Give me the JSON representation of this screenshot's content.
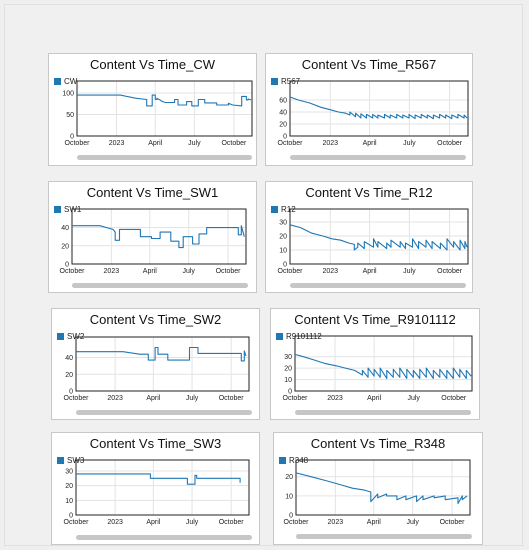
{
  "series_color": "#1f77b4",
  "chart_data": [
    {
      "type": "line",
      "title": "Content Vs Time_CW",
      "series": [
        {
          "name": "CW",
          "x": [
            "2022-10-01",
            "2022-12-06",
            "2023-01-10",
            "2023-02-14",
            "2023-03-12",
            "2023-03-12",
            "2023-03-25",
            "2023-03-25",
            "2023-04-01",
            "2023-04-01",
            "2023-04-05",
            "2023-04-05",
            "2023-04-18",
            "2023-04-25",
            "2023-05-16",
            "2023-05-16",
            "2023-05-24",
            "2023-05-24",
            "2023-06-13",
            "2023-06-13",
            "2023-06-25",
            "2023-06-25",
            "2023-07-10",
            "2023-07-10",
            "2023-07-25",
            "2023-07-25",
            "2023-08-22",
            "2023-08-22",
            "2023-09-18",
            "2023-09-18",
            "2023-09-28",
            "2023-10-19",
            "2023-10-19",
            "2023-10-30",
            "2023-10-30",
            "2023-11-03",
            "2023-11-03",
            "2023-11-10"
          ],
          "y": [
            95,
            95,
            95,
            88,
            85,
            70,
            70,
            95,
            95,
            85,
            85,
            88,
            80,
            78,
            78,
            85,
            85,
            72,
            72,
            80,
            80,
            70,
            70,
            85,
            85,
            77,
            77,
            72,
            72,
            76,
            72,
            70,
            92,
            92,
            84,
            84,
            86,
            84
          ]
        }
      ],
      "xlabel": "",
      "ylabel": "",
      "ylim": [
        0,
        100
      ],
      "xticks": [
        "October",
        "2023",
        "April",
        "July",
        "October"
      ],
      "yticks": [
        0,
        50,
        100
      ]
    },
    {
      "type": "line",
      "title": "Content Vs Time_R567",
      "series": [
        {
          "name": "R567",
          "x": [
            "2022-10-01",
            "2022-10-20",
            "2022-11-15",
            "2022-12-10",
            "2023-01-05",
            "2023-01-20",
            "2023-02-05",
            "2023-02-15",
            "2023-02-15",
            "2023-02-28",
            "2023-02-28",
            "2023-03-12",
            "2023-03-12",
            "2023-03-25",
            "2023-03-25",
            "2023-04-08",
            "2023-04-08",
            "2023-04-20",
            "2023-04-20",
            "2023-05-05",
            "2023-05-05",
            "2023-05-18",
            "2023-05-18",
            "2023-06-02",
            "2023-06-02",
            "2023-06-16",
            "2023-06-16",
            "2023-06-30",
            "2023-06-30",
            "2023-07-14",
            "2023-07-14",
            "2023-07-28",
            "2023-07-28",
            "2023-08-11",
            "2023-08-11",
            "2023-08-25",
            "2023-08-25",
            "2023-09-08",
            "2023-09-08",
            "2023-09-22",
            "2023-09-22",
            "2023-10-06",
            "2023-10-06",
            "2023-10-20",
            "2023-10-20",
            "2023-11-03",
            "2023-11-03",
            "2023-11-10"
          ],
          "y": [
            65,
            60,
            55,
            48,
            43,
            40,
            38,
            35,
            40,
            32,
            38,
            30,
            37,
            30,
            36,
            30,
            36,
            30,
            35,
            30,
            36,
            30,
            35,
            30,
            36,
            30,
            35,
            30,
            36,
            29,
            35,
            30,
            36,
            30,
            35,
            29,
            35,
            30,
            36,
            30,
            35,
            29,
            35,
            30,
            36,
            30,
            35,
            30
          ]
        }
      ],
      "xlabel": "",
      "ylabel": "",
      "ylim": [
        0,
        70
      ],
      "xticks": [
        "October",
        "2023",
        "April",
        "July",
        "October"
      ],
      "yticks": [
        0,
        20,
        40,
        60
      ]
    },
    {
      "type": "line",
      "title": "Content Vs Time_SW1",
      "series": [
        {
          "name": "SW1",
          "x": [
            "2022-10-01",
            "2022-12-05",
            "2023-01-05",
            "2023-01-10",
            "2023-01-10",
            "2023-01-20",
            "2023-01-20",
            "2023-03-10",
            "2023-03-10",
            "2023-04-05",
            "2023-04-05",
            "2023-04-25",
            "2023-04-25",
            "2023-05-20",
            "2023-05-20",
            "2023-06-08",
            "2023-06-08",
            "2023-06-18",
            "2023-06-18",
            "2023-07-10",
            "2023-07-10",
            "2023-07-25",
            "2023-07-25",
            "2023-08-12",
            "2023-08-12",
            "2023-10-25",
            "2023-10-25",
            "2023-11-01",
            "2023-11-01",
            "2023-11-08"
          ],
          "y": [
            42,
            42,
            38,
            35,
            26,
            26,
            38,
            38,
            30,
            30,
            28,
            28,
            35,
            35,
            25,
            25,
            18,
            18,
            30,
            30,
            22,
            22,
            33,
            33,
            40,
            40,
            32,
            32,
            42,
            30
          ]
        }
      ],
      "xlabel": "",
      "ylabel": "",
      "ylim": [
        0,
        45
      ],
      "xticks": [
        "October",
        "2023",
        "April",
        "July",
        "October"
      ],
      "yticks": [
        0,
        20,
        40
      ]
    },
    {
      "type": "line",
      "title": "Content Vs Time_R12",
      "series": [
        {
          "name": "R12",
          "x": [
            "2022-10-01",
            "2022-10-25",
            "2022-11-20",
            "2022-12-15",
            "2023-01-05",
            "2023-01-25",
            "2023-02-12",
            "2023-02-25",
            "2023-02-25",
            "2023-03-05",
            "2023-03-05",
            "2023-03-20",
            "2023-03-20",
            "2023-04-10",
            "2023-04-10",
            "2023-04-20",
            "2023-04-20",
            "2023-05-10",
            "2023-05-10",
            "2023-05-20",
            "2023-05-20",
            "2023-06-10",
            "2023-06-10",
            "2023-06-22",
            "2023-06-22",
            "2023-07-08",
            "2023-07-08",
            "2023-07-22",
            "2023-07-22",
            "2023-08-08",
            "2023-08-08",
            "2023-08-22",
            "2023-08-22",
            "2023-09-10",
            "2023-09-10",
            "2023-09-25",
            "2023-09-25",
            "2023-10-10",
            "2023-10-10",
            "2023-10-25",
            "2023-10-25",
            "2023-11-05",
            "2023-11-05",
            "2023-11-10"
          ],
          "y": [
            28,
            26,
            22,
            20,
            18,
            17,
            15,
            14,
            10,
            12,
            15,
            11,
            16,
            12,
            18,
            12,
            16,
            11,
            15,
            12,
            17,
            12,
            16,
            11,
            15,
            12,
            18,
            11,
            16,
            12,
            17,
            11,
            16,
            11,
            15,
            10,
            18,
            12,
            16,
            10,
            17,
            11,
            16,
            12
          ]
        }
      ],
      "xlabel": "",
      "ylabel": "",
      "ylim": [
        0,
        30
      ],
      "xticks": [
        "October",
        "2023",
        "April",
        "July",
        "October"
      ],
      "yticks": [
        0,
        10,
        20,
        30
      ]
    },
    {
      "type": "line",
      "title": "Content Vs Time_SW2",
      "series": [
        {
          "name": "SW2",
          "x": [
            "2022-10-01",
            "2023-01-20",
            "2023-02-28",
            "2023-03-20",
            "2023-03-20",
            "2023-04-05",
            "2023-04-05",
            "2023-04-12",
            "2023-04-12",
            "2023-05-05",
            "2023-05-05",
            "2023-06-25",
            "2023-06-25",
            "2023-07-15",
            "2023-07-15",
            "2023-08-28",
            "2023-08-28",
            "2023-10-25",
            "2023-10-25",
            "2023-11-01",
            "2023-11-01",
            "2023-11-05"
          ],
          "y": [
            47,
            47,
            44,
            44,
            37,
            37,
            52,
            52,
            44,
            44,
            37,
            37,
            52,
            52,
            45,
            45,
            45,
            45,
            36,
            36,
            48,
            42
          ]
        }
      ],
      "xlabel": "",
      "ylabel": "",
      "ylim": [
        0,
        55
      ],
      "xticks": [
        "October",
        "2023",
        "April",
        "July",
        "October"
      ],
      "yticks": [
        0,
        20,
        40
      ]
    },
    {
      "type": "line",
      "title": "Content Vs Time_R9101112",
      "series": [
        {
          "name": "R9101112",
          "x": [
            "2022-10-01",
            "2022-10-20",
            "2022-11-15",
            "2022-12-10",
            "2023-01-05",
            "2023-01-25",
            "2023-02-15",
            "2023-03-05",
            "2023-03-05",
            "2023-03-18",
            "2023-03-18",
            "2023-04-01",
            "2023-04-01",
            "2023-04-15",
            "2023-04-15",
            "2023-04-30",
            "2023-04-30",
            "2023-05-15",
            "2023-05-15",
            "2023-05-30",
            "2023-05-30",
            "2023-06-15",
            "2023-06-15",
            "2023-06-30",
            "2023-06-30",
            "2023-07-15",
            "2023-07-15",
            "2023-07-30",
            "2023-07-30",
            "2023-08-15",
            "2023-08-15",
            "2023-08-30",
            "2023-08-30",
            "2023-09-15",
            "2023-09-15",
            "2023-09-30",
            "2023-09-30",
            "2023-10-15",
            "2023-10-15",
            "2023-10-30",
            "2023-10-30",
            "2023-11-10"
          ],
          "y": [
            32,
            30,
            27,
            24,
            22,
            20,
            18,
            14,
            18,
            12,
            20,
            13,
            19,
            12,
            20,
            11,
            18,
            12,
            19,
            12,
            20,
            11,
            19,
            12,
            18,
            11,
            19,
            12,
            20,
            11,
            18,
            12,
            19,
            11,
            18,
            11,
            20,
            12,
            19,
            11,
            18,
            13
          ]
        }
      ],
      "xlabel": "",
      "ylabel": "",
      "ylim": [
        0,
        35
      ],
      "xticks": [
        "October",
        "2023",
        "April",
        "July",
        "October"
      ],
      "yticks": [
        0,
        10,
        20,
        30
      ]
    },
    {
      "type": "line",
      "title": "Content Vs Time_SW3",
      "series": [
        {
          "name": "SW3",
          "x": [
            "2022-10-01",
            "2023-03-25",
            "2023-03-25",
            "2023-06-20",
            "2023-06-20",
            "2023-07-08",
            "2023-07-08",
            "2023-07-12",
            "2023-07-12",
            "2023-10-22",
            "2023-10-22"
          ],
          "y": [
            28,
            28,
            25,
            25,
            21,
            21,
            27,
            27,
            25,
            25,
            22
          ]
        }
      ],
      "xlabel": "",
      "ylabel": "",
      "ylim": [
        0,
        30
      ],
      "xticks": [
        "October",
        "2023",
        "April",
        "July",
        "October"
      ],
      "yticks": [
        0,
        10,
        20,
        30
      ]
    },
    {
      "type": "line",
      "title": "Content Vs Time_R348",
      "series": [
        {
          "name": "R348",
          "x": [
            "2022-10-01",
            "2022-11-05",
            "2022-12-10",
            "2023-01-10",
            "2023-02-10",
            "2023-03-10",
            "2023-03-25",
            "2023-03-25",
            "2023-04-10",
            "2023-04-10",
            "2023-05-01",
            "2023-05-01",
            "2023-05-25",
            "2023-05-25",
            "2023-06-15",
            "2023-06-15",
            "2023-07-10",
            "2023-07-10",
            "2023-07-25",
            "2023-07-25",
            "2023-08-20",
            "2023-08-20",
            "2023-09-15",
            "2023-09-15",
            "2023-10-15",
            "2023-10-15",
            "2023-10-25",
            "2023-10-25",
            "2023-11-05"
          ],
          "y": [
            22,
            20,
            18,
            16,
            14,
            13,
            12,
            7,
            11,
            9,
            11,
            10,
            10,
            8,
            10,
            8,
            10,
            7,
            10,
            8,
            10,
            9,
            10,
            8,
            9,
            6,
            10,
            8,
            10
          ]
        }
      ],
      "xlabel": "",
      "ylabel": "",
      "ylim": [
        0,
        23
      ],
      "xticks": [
        "October",
        "2023",
        "April",
        "July",
        "October"
      ],
      "yticks": [
        0,
        10,
        20
      ]
    }
  ]
}
